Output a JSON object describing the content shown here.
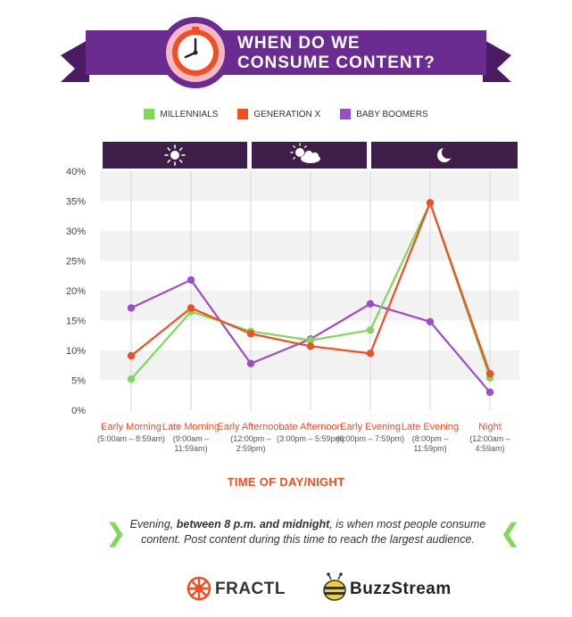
{
  "header": {
    "title_line1": "WHEN DO WE",
    "title_line2": "CONSUME CONTENT?"
  },
  "legend": [
    {
      "label": "MILLENNIALS",
      "color": "#7ed957"
    },
    {
      "label": "GENERATION X",
      "color": "#f04e23"
    },
    {
      "label": "BABY BOOMERS",
      "color": "#9b4dca"
    }
  ],
  "chart_data": {
    "type": "line",
    "categories": [
      {
        "main": "Early Morning",
        "sub": "(5:00am – 8:59am)"
      },
      {
        "main": "Late Morning",
        "sub": "(9:00am – 11:59am)"
      },
      {
        "main": "Early Afternoon",
        "sub": "(12:00pm – 2:59pm)"
      },
      {
        "main": "Late Afternoon",
        "sub": "(3:00pm – 5:59pm)"
      },
      {
        "main": "Early Evening",
        "sub": "(6:00pm – 7:59pm)"
      },
      {
        "main": "Late Evening",
        "sub": "(8:00pm – 11:59pm)"
      },
      {
        "main": "Night",
        "sub": "(12:00am – 4:59am)"
      }
    ],
    "series": [
      {
        "name": "MILLENNIALS",
        "color": "#7ed957",
        "values": [
          5.2,
          16.5,
          13.2,
          11.7,
          13.4,
          34.7,
          5.4
        ]
      },
      {
        "name": "GENERATION X",
        "color": "#f04e23",
        "values": [
          9.1,
          17.1,
          12.8,
          10.7,
          9.5,
          34.7,
          6.1
        ]
      },
      {
        "name": "BABY BOOMERS",
        "color": "#9b4dca",
        "values": [
          17.1,
          21.8,
          7.8,
          11.9,
          17.8,
          14.8,
          3.0
        ]
      }
    ],
    "yticks": [
      "0%",
      "5%",
      "10%",
      "15%",
      "20%",
      "25%",
      "30%",
      "35%",
      "40%"
    ],
    "ylim": [
      0,
      40
    ],
    "xlabel": "TIME OF DAY/NIGHT",
    "grid": true,
    "legend_position": "top",
    "period_icons": [
      "sun-icon",
      "sun-cloud-icon",
      "moon-icon"
    ]
  },
  "callout": {
    "pre": "Evening, ",
    "bold": "between 8 p.m. and midnight",
    "post": ", is when most people consume content. Post content during this time to reach the largest audience."
  },
  "footer": {
    "logo1": "FRACTL",
    "logo2": "BuzzStream"
  },
  "colors": {
    "purple": "#6b2c91",
    "dark_purple": "#4a1b63",
    "band": "#3d1f4a",
    "accent": "#f04e23",
    "green": "#7ed957"
  }
}
